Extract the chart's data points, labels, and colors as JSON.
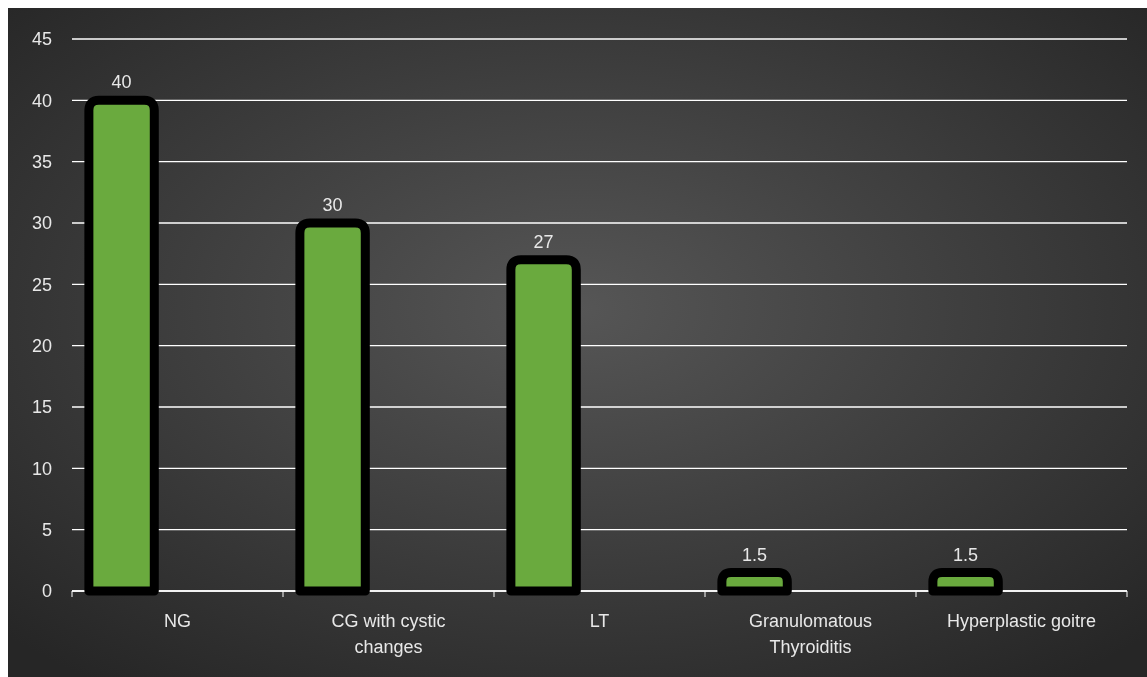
{
  "chart_data": {
    "type": "bar",
    "categories": [
      "NG",
      "CG with cystic changes",
      "LT",
      "Granulomatous Thyroiditis",
      "Hyperplastic goitre"
    ],
    "values": [
      40,
      30,
      27,
      1.5,
      1.5
    ],
    "color": "#6aaa3e",
    "ylim": [
      0,
      45
    ],
    "yticks": [
      0,
      5,
      10,
      15,
      20,
      25,
      30,
      35,
      40,
      45
    ],
    "grid": "y",
    "data_labels": true
  }
}
